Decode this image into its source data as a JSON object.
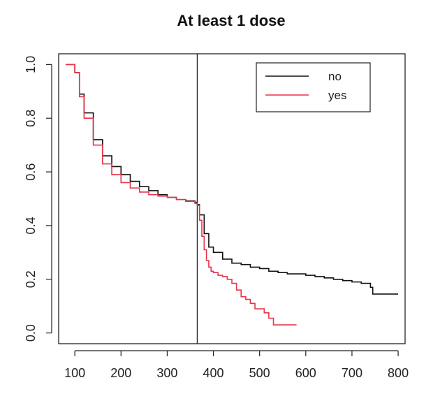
{
  "chart_data": {
    "type": "line",
    "title": "At least 1 dose",
    "xlabel": "",
    "ylabel": "",
    "xlim": [
      65,
      815
    ],
    "ylim": [
      -0.04,
      1.04
    ],
    "xticks": [
      100,
      200,
      300,
      400,
      500,
      600,
      700,
      800
    ],
    "yticks": [
      0.0,
      0.2,
      0.4,
      0.6,
      0.8,
      1.0
    ],
    "xtick_labels": [
      "100",
      "200",
      "300",
      "400",
      "500",
      "600",
      "700",
      "800"
    ],
    "ytick_labels": [
      "0.0",
      "0.2",
      "0.4",
      "0.6",
      "0.8",
      "1.0"
    ],
    "vline": 365,
    "legend_position": "top-right",
    "series": [
      {
        "name": "no",
        "color": "#111111",
        "x": [
          80,
          90,
          100,
          110,
          120,
          140,
          160,
          180,
          200,
          220,
          240,
          260,
          280,
          300,
          320,
          340,
          360,
          365,
          370,
          380,
          390,
          400,
          420,
          440,
          460,
          480,
          500,
          520,
          540,
          560,
          580,
          600,
          620,
          640,
          660,
          680,
          700,
          720,
          735,
          740,
          745,
          750,
          800
        ],
        "y": [
          1.0,
          1.0,
          0.97,
          0.89,
          0.82,
          0.72,
          0.66,
          0.62,
          0.59,
          0.565,
          0.545,
          0.53,
          0.515,
          0.505,
          0.497,
          0.492,
          0.487,
          0.478,
          0.44,
          0.37,
          0.32,
          0.3,
          0.275,
          0.26,
          0.255,
          0.245,
          0.24,
          0.23,
          0.225,
          0.22,
          0.22,
          0.215,
          0.21,
          0.205,
          0.2,
          0.195,
          0.19,
          0.185,
          0.185,
          0.17,
          0.145,
          0.145,
          0.145
        ]
      },
      {
        "name": "yes",
        "color": "#e8334a",
        "x": [
          80,
          90,
          100,
          110,
          120,
          140,
          160,
          180,
          200,
          220,
          240,
          260,
          280,
          300,
          320,
          340,
          360,
          365,
          370,
          375,
          380,
          385,
          390,
          395,
          400,
          410,
          420,
          430,
          440,
          450,
          460,
          470,
          480,
          490,
          500,
          510,
          520,
          530,
          580
        ],
        "y": [
          1.0,
          1.0,
          0.97,
          0.88,
          0.8,
          0.7,
          0.63,
          0.59,
          0.56,
          0.54,
          0.525,
          0.515,
          0.51,
          0.505,
          0.497,
          0.49,
          0.483,
          0.475,
          0.42,
          0.36,
          0.31,
          0.27,
          0.245,
          0.23,
          0.225,
          0.215,
          0.21,
          0.2,
          0.185,
          0.16,
          0.135,
          0.125,
          0.11,
          0.09,
          0.09,
          0.075,
          0.055,
          0.03,
          0.03
        ]
      }
    ]
  },
  "colors": {
    "axis": "#222222",
    "vline": "#222222",
    "no": "#111111",
    "yes": "#e8334a"
  }
}
